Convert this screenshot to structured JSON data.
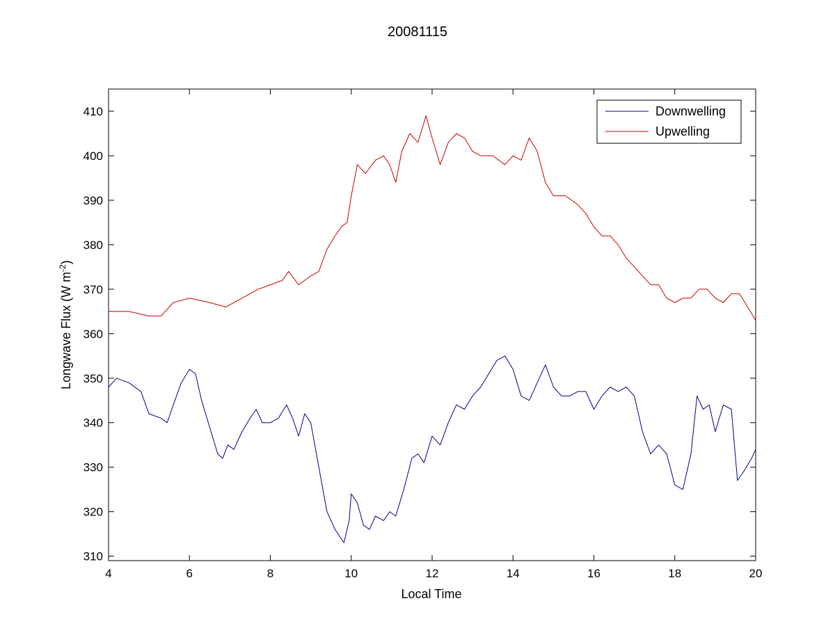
{
  "chart_data": {
    "type": "line",
    "title": "20081115",
    "xlabel": "Local Time",
    "ylabel": "Longwave Flux (W m",
    "ylabel_sup": "-2",
    "ylabel_close": ")",
    "xlim": [
      4,
      20
    ],
    "ylim": [
      309,
      415
    ],
    "xticks": [
      4,
      6,
      8,
      10,
      12,
      14,
      16,
      18,
      20
    ],
    "yticks": [
      310,
      320,
      330,
      340,
      350,
      360,
      370,
      380,
      390,
      400,
      410
    ],
    "grid": false,
    "legend_position": "top-right",
    "series": [
      {
        "name": "Downwelling",
        "color": "#00008B",
        "x": [
          4.0,
          4.2,
          4.5,
          4.8,
          5.0,
          5.3,
          5.45,
          5.6,
          5.8,
          6.0,
          6.15,
          6.3,
          6.5,
          6.7,
          6.82,
          6.95,
          7.1,
          7.3,
          7.5,
          7.65,
          7.8,
          8.0,
          8.2,
          8.4,
          8.55,
          8.7,
          8.85,
          9.0,
          9.2,
          9.4,
          9.6,
          9.82,
          9.95,
          10.0,
          10.15,
          10.3,
          10.45,
          10.6,
          10.8,
          10.95,
          11.1,
          11.3,
          11.5,
          11.65,
          11.8,
          12.0,
          12.2,
          12.4,
          12.6,
          12.8,
          13.0,
          13.2,
          13.4,
          13.6,
          13.8,
          14.0,
          14.2,
          14.4,
          14.6,
          14.8,
          15.0,
          15.2,
          15.4,
          15.6,
          15.8,
          16.0,
          16.2,
          16.4,
          16.6,
          16.8,
          17.0,
          17.2,
          17.4,
          17.6,
          17.8,
          18.0,
          18.2,
          18.4,
          18.55,
          18.7,
          18.85,
          19.0,
          19.2,
          19.4,
          19.55,
          19.7,
          19.9,
          20.0
        ],
        "y": [
          348,
          350,
          349,
          347,
          342,
          341,
          340,
          344,
          349,
          352,
          351,
          345,
          339,
          333,
          332,
          335,
          334,
          338,
          341,
          343,
          340,
          340,
          341,
          344,
          341,
          337,
          342,
          340,
          330,
          320,
          316,
          313,
          318,
          324,
          322,
          317,
          316,
          319,
          318,
          320,
          319,
          325,
          332,
          333,
          331,
          337,
          335,
          340,
          344,
          343,
          346,
          348,
          351,
          354,
          355,
          352,
          346,
          345,
          349,
          353,
          348,
          346,
          346,
          347,
          347,
          343,
          346,
          348,
          347,
          348,
          346,
          338,
          333,
          335,
          333,
          326,
          325,
          333,
          346,
          343,
          344,
          338,
          344,
          343,
          327,
          329,
          332,
          334
        ]
      },
      {
        "name": "Upwelling",
        "color": "#CC0000",
        "x": [
          4.0,
          4.5,
          5.0,
          5.3,
          5.6,
          6.0,
          6.5,
          6.9,
          7.3,
          7.7,
          8.0,
          8.3,
          8.45,
          8.7,
          9.0,
          9.2,
          9.4,
          9.6,
          9.75,
          9.9,
          10.0,
          10.15,
          10.35,
          10.6,
          10.8,
          10.95,
          11.1,
          11.25,
          11.45,
          11.65,
          11.85,
          12.0,
          12.2,
          12.4,
          12.6,
          12.8,
          13.0,
          13.2,
          13.5,
          13.8,
          14.0,
          14.2,
          14.4,
          14.6,
          14.8,
          15.0,
          15.3,
          15.6,
          15.8,
          16.0,
          16.2,
          16.4,
          16.6,
          16.8,
          17.0,
          17.2,
          17.4,
          17.6,
          17.8,
          18.0,
          18.2,
          18.4,
          18.6,
          18.8,
          19.0,
          19.2,
          19.4,
          19.6,
          19.8,
          20.0
        ],
        "y": [
          365,
          365,
          364,
          364,
          367,
          368,
          367,
          366,
          368,
          370,
          371,
          372,
          374,
          371,
          373,
          374,
          379,
          382,
          384,
          385,
          391,
          398,
          396,
          399,
          400,
          398,
          394,
          401,
          405,
          403,
          409,
          404,
          398,
          403,
          405,
          404,
          401,
          400,
          400,
          398,
          400,
          399,
          404,
          401,
          394,
          391,
          391,
          389,
          387,
          384,
          382,
          382,
          380,
          377,
          375,
          373,
          371,
          371,
          368,
          367,
          368,
          368,
          370,
          370,
          368,
          367,
          369,
          369,
          366,
          363
        ]
      }
    ]
  }
}
